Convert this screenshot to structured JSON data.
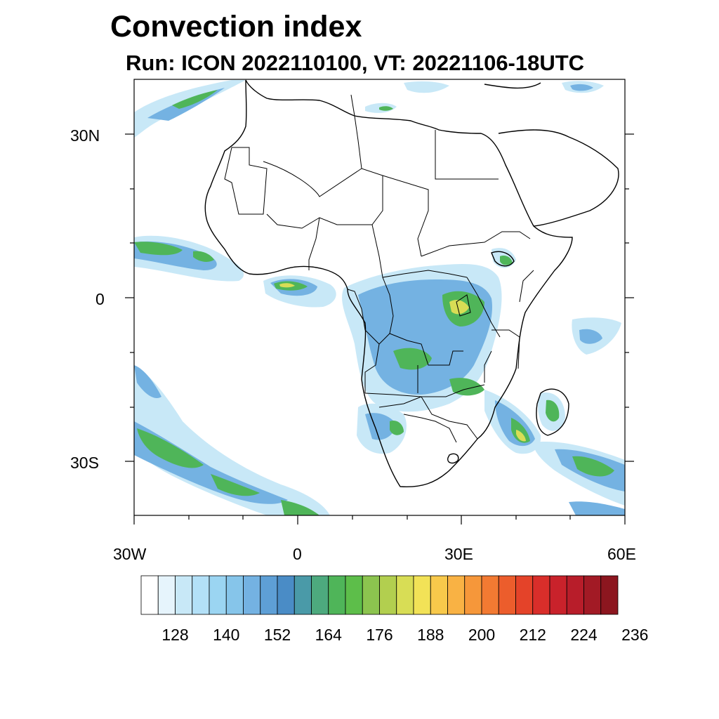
{
  "title": "Convection index",
  "subtitle": "Run: ICON 2022110100,  VT: 20221106-18UTC",
  "axes": {
    "lat_ticks": [
      "30N",
      "0",
      "30S"
    ],
    "lon_ticks": [
      "30W",
      "0",
      "30E",
      "60E"
    ]
  },
  "colorbar": {
    "labels": [
      "128",
      "140",
      "152",
      "164",
      "176",
      "188",
      "200",
      "212",
      "224",
      "236"
    ],
    "colors": [
      "#ffffff",
      "#e6f4fc",
      "#c8e8f7",
      "#b3e0f7",
      "#9bd5f2",
      "#86c5ea",
      "#74b2e2",
      "#5e9fd6",
      "#4a8cc6",
      "#4a9aa8",
      "#4daa7e",
      "#4fb559",
      "#5dbe4a",
      "#8cc44f",
      "#b2cf4f",
      "#d8dd55",
      "#f2e257",
      "#f8c94b",
      "#f9b244",
      "#f6973a",
      "#f27a32",
      "#ec5d2c",
      "#e44329",
      "#d92e2a",
      "#c9222b",
      "#b81d2a",
      "#a21a25",
      "#8c161f"
    ]
  },
  "map_colors": {
    "light": "#c8e8f7",
    "blue": "#74b2e2",
    "green": "#4fb559",
    "yellow": "#d8dd55"
  }
}
